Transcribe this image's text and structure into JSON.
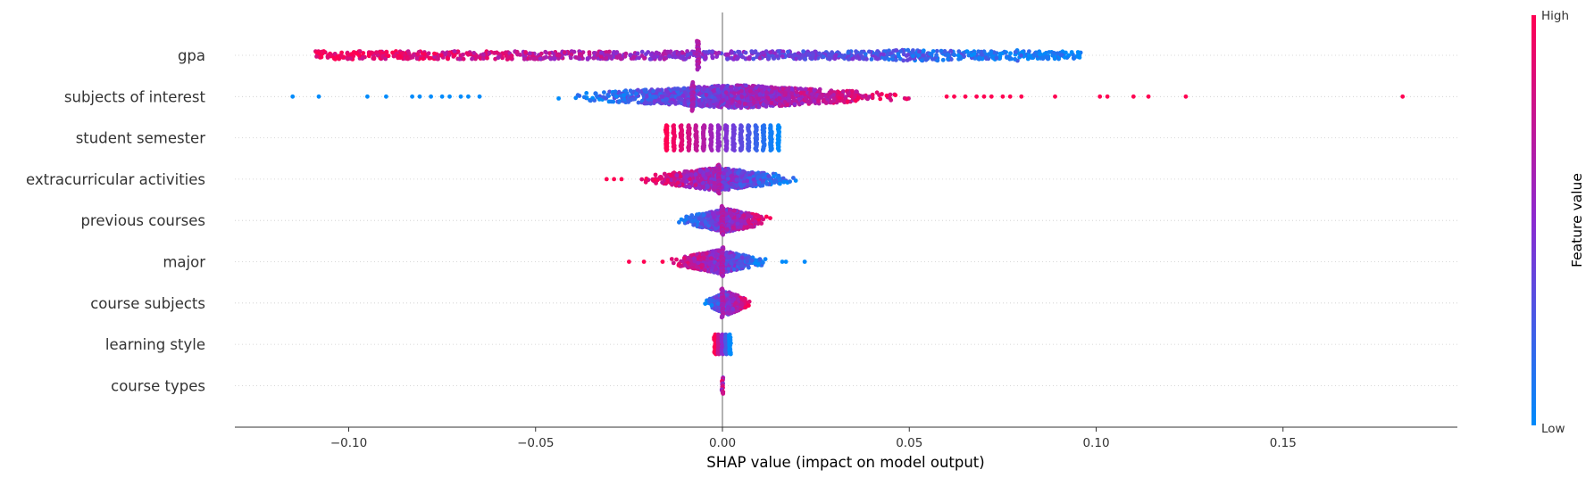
{
  "chart_data": {
    "type": "scatter",
    "subtype": "shap-beeswarm",
    "title": "",
    "xlabel": "SHAP value (impact on model output)",
    "xlim": [
      -0.13,
      0.197
    ],
    "x_ticks": [
      -0.1,
      -0.05,
      0.0,
      0.05,
      0.1,
      0.15
    ],
    "x_tick_labels": [
      "−0.10",
      "−0.05",
      "0.00",
      "0.05",
      "0.10",
      "0.15"
    ],
    "zero_line": 0.0,
    "colorbar": {
      "title": "Feature value",
      "high_label": "High",
      "low_label": "Low",
      "high_color": "#ff0052",
      "mid_color": "#8b2ad0",
      "low_color": "#008bfb"
    },
    "features": [
      {
        "name": "gpa",
        "min": -0.109,
        "max": 0.096,
        "dense_min": -0.109,
        "dense_max": 0.096,
        "spread": "uniform",
        "zero_cluster": -0.0065,
        "color_trend": "high-left",
        "outliers": []
      },
      {
        "name": "subjects of interest",
        "min": -0.115,
        "max": 0.182,
        "dense_min": -0.048,
        "dense_max": 0.055,
        "spread": "peaked",
        "zero_cluster": -0.008,
        "color_trend": "high-right",
        "outliers": [
          -0.115,
          -0.108,
          -0.095,
          -0.09,
          -0.083,
          -0.081,
          -0.078,
          -0.075,
          -0.073,
          -0.07,
          -0.068,
          -0.065,
          0.06,
          0.062,
          0.065,
          0.068,
          0.07,
          0.072,
          0.075,
          0.077,
          0.08,
          0.089,
          0.101,
          0.103,
          0.11,
          0.114,
          0.124,
          0.182
        ]
      },
      {
        "name": "student semester",
        "min": -0.015,
        "max": 0.015,
        "dense_min": -0.015,
        "dense_max": 0.015,
        "spread": "columns",
        "zero_cluster": null,
        "color_trend": "high-left",
        "outliers": []
      },
      {
        "name": "extracurricular activities",
        "min": -0.031,
        "max": 0.024,
        "dense_min": -0.024,
        "dense_max": 0.022,
        "spread": "peaked",
        "zero_cluster": -0.001,
        "color_trend": "high-left",
        "outliers": [
          -0.031,
          -0.029,
          -0.027
        ]
      },
      {
        "name": "previous courses",
        "min": -0.013,
        "max": 0.015,
        "dense_min": -0.013,
        "dense_max": 0.015,
        "spread": "peaked",
        "zero_cluster": 0.0,
        "color_trend": "high-right",
        "outliers": []
      },
      {
        "name": "major",
        "min": -0.025,
        "max": 0.022,
        "dense_min": -0.015,
        "dense_max": 0.013,
        "spread": "peaked",
        "zero_cluster": 0.0,
        "color_trend": "high-left",
        "outliers": [
          -0.025,
          -0.021,
          -0.016,
          0.016,
          0.017,
          0.022
        ]
      },
      {
        "name": "course subjects",
        "min": -0.005,
        "max": 0.008,
        "dense_min": -0.005,
        "dense_max": 0.008,
        "spread": "peaked",
        "zero_cluster": 0.0,
        "color_trend": "high-right",
        "outliers": []
      },
      {
        "name": "learning style",
        "min": -0.002,
        "max": 0.002,
        "dense_min": -0.002,
        "dense_max": 0.002,
        "spread": "columns",
        "zero_cluster": null,
        "color_trend": "high-left",
        "outliers": []
      },
      {
        "name": "course types",
        "min": -0.0003,
        "max": 0.0003,
        "dense_min": -0.0003,
        "dense_max": 0.0003,
        "spread": "line",
        "zero_cluster": null,
        "color_trend": "mixed",
        "outliers": []
      }
    ]
  }
}
